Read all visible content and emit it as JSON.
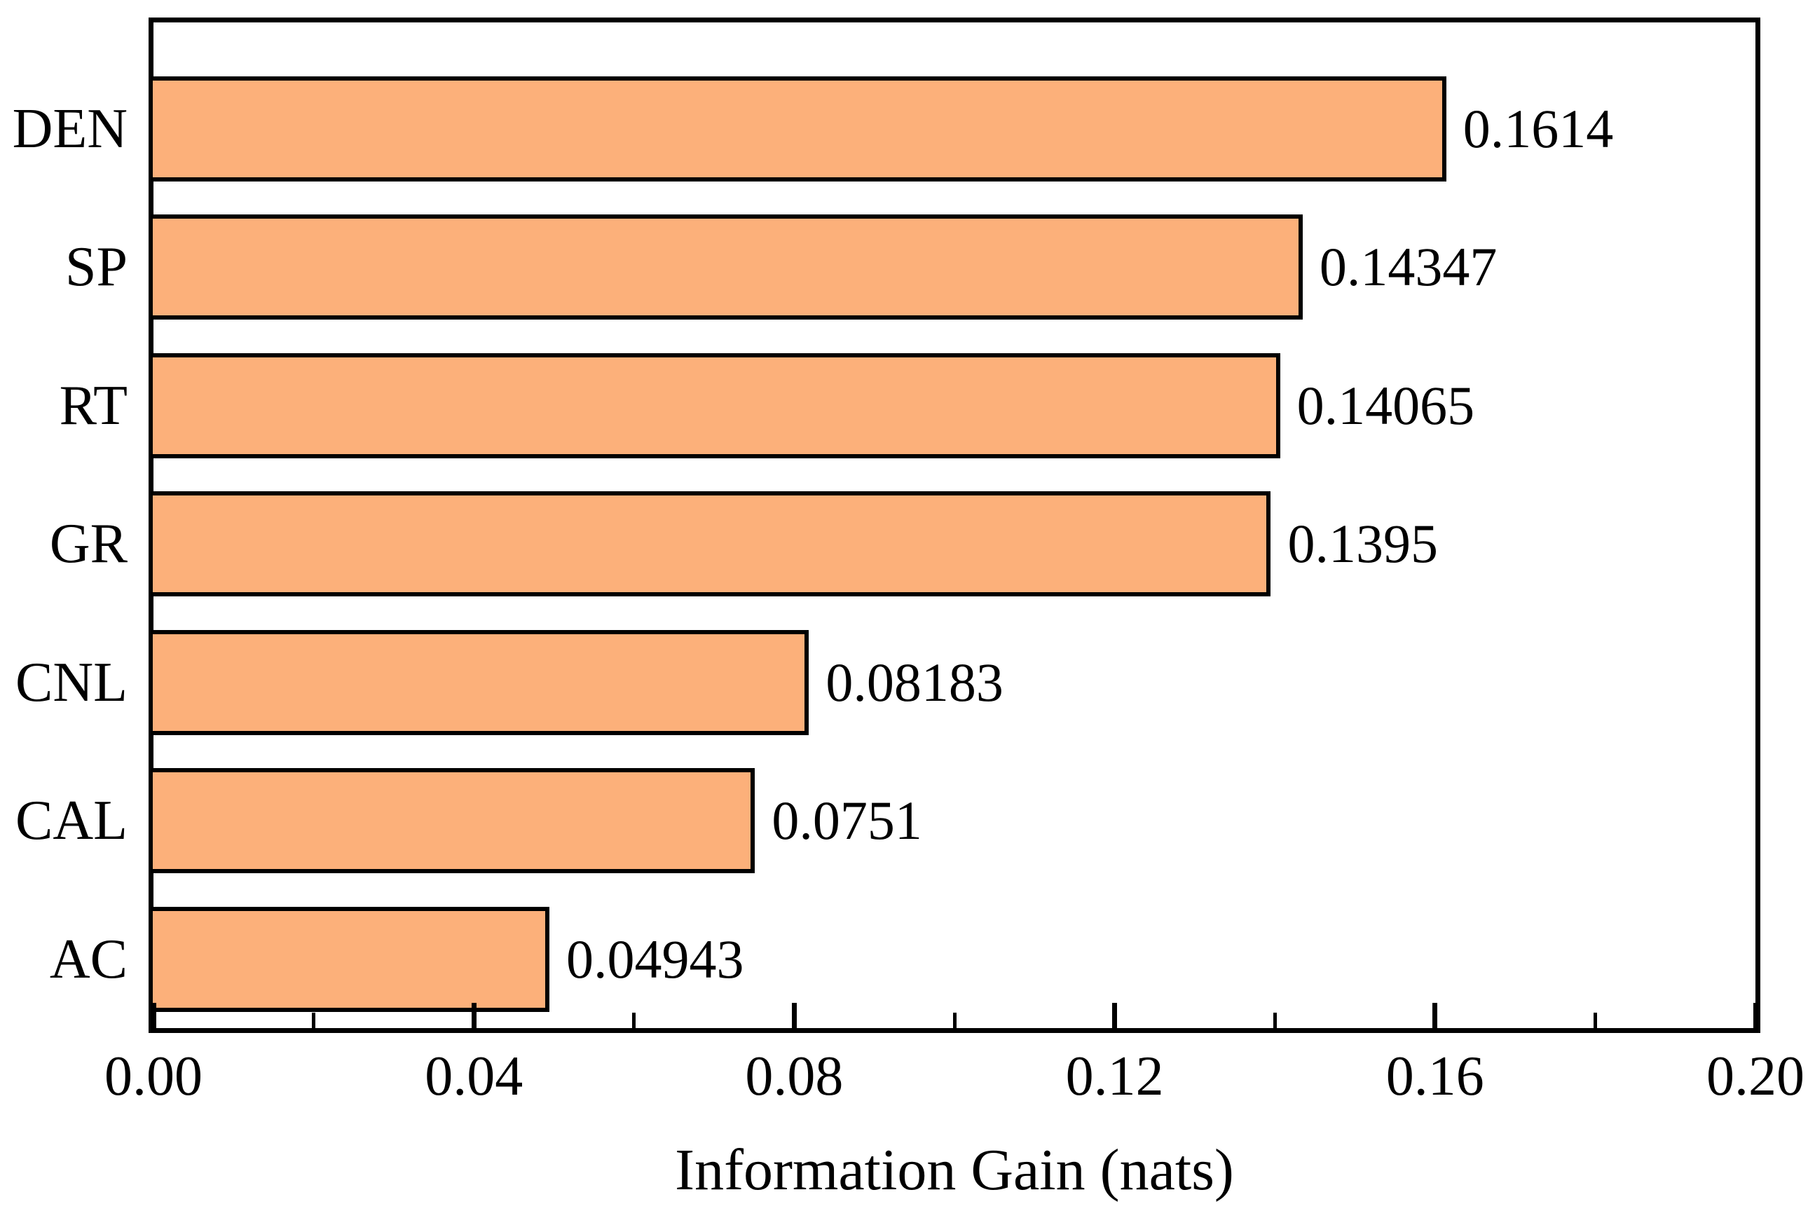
{
  "chart_data": {
    "type": "bar",
    "orientation": "horizontal",
    "title": "",
    "xlabel": "Information Gain (nats)",
    "ylabel": "",
    "categories": [
      "DEN",
      "SP",
      "RT",
      "GR",
      "CNL",
      "CAL",
      "AC"
    ],
    "values": [
      0.1614,
      0.14347,
      0.14065,
      0.1395,
      0.08183,
      0.0751,
      0.04943
    ],
    "value_labels": [
      "0.1614",
      "0.14347",
      "0.14065",
      "0.1395",
      "0.08183",
      "0.0751",
      "0.04943"
    ],
    "xlim": [
      0.0,
      0.2
    ],
    "x_major_ticks": [
      {
        "value": 0.0,
        "label": "0.00"
      },
      {
        "value": 0.04,
        "label": "0.04"
      },
      {
        "value": 0.08,
        "label": "0.08"
      },
      {
        "value": 0.12,
        "label": "0.12"
      },
      {
        "value": 0.16,
        "label": "0.16"
      },
      {
        "value": 0.2,
        "label": "0.20"
      }
    ],
    "x_minor_ticks": [
      0.02,
      0.06,
      0.1,
      0.14,
      0.18
    ],
    "grid": false,
    "legend_position": "none",
    "bar_color": "#FCB07A",
    "bar_edge_color": "#000000",
    "axis_color": "#000000",
    "text_color": "#000000",
    "background_color": "#FFFFFF"
  }
}
